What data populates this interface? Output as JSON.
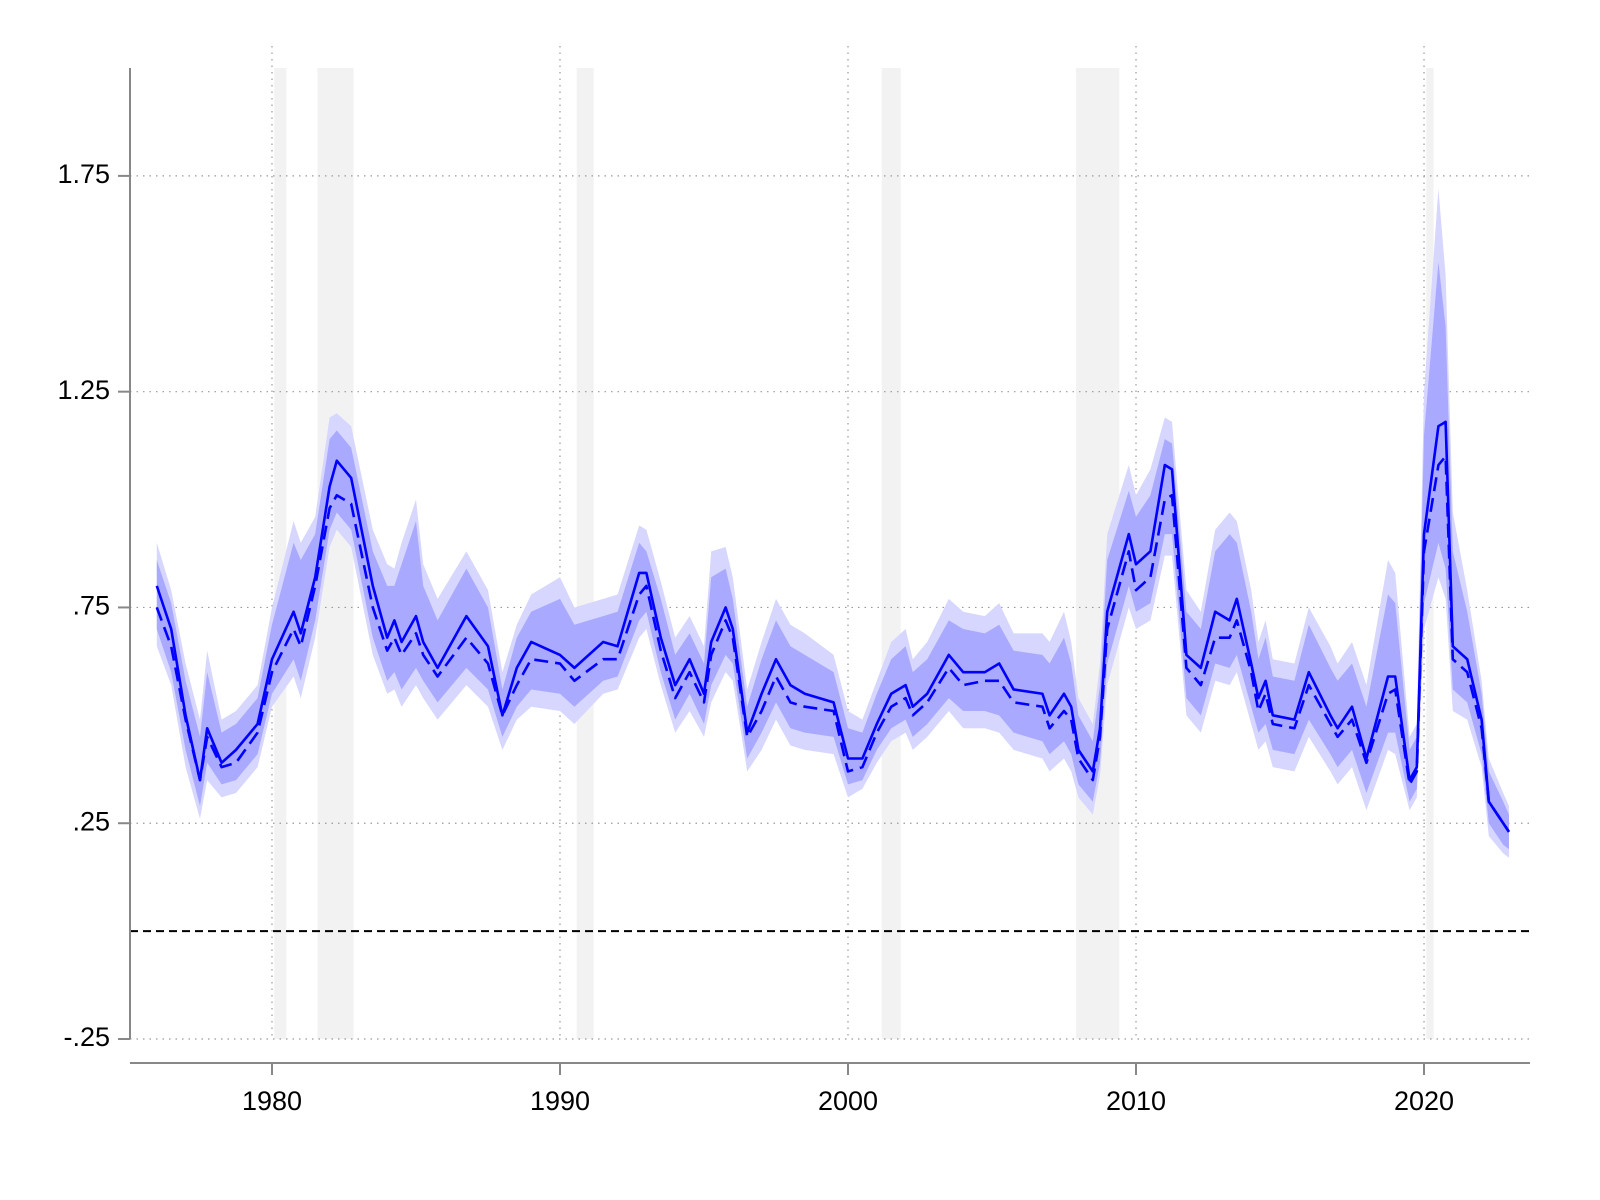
{
  "chart_data": {
    "type": "line",
    "xlim": [
      1975.07,
      2023.68
    ],
    "ylim": [
      -0.25,
      2.0
    ],
    "xticks": [
      1980,
      1990,
      2000,
      2010,
      2020
    ],
    "yticks": [
      {
        "value": -0.25,
        "label": "-.25"
      },
      {
        "value": 0.25,
        "label": ".25"
      },
      {
        "value": 0.75,
        "label": ".75"
      },
      1.25,
      1.75
    ],
    "grid": true,
    "shaded_regions": [
      [
        1980.08,
        1980.5
      ],
      [
        1981.58,
        1982.83
      ],
      [
        1990.58,
        1991.17
      ],
      [
        2001.17,
        2001.83
      ],
      [
        2007.92,
        2009.42
      ],
      [
        2020.08,
        2020.33
      ]
    ],
    "shaded_color": "#f2f2f2",
    "hline": {
      "value": 0,
      "color": "#000000",
      "dashed": true
    },
    "x": [
      1976.0,
      1976.5,
      1977.0,
      1977.5,
      1977.75,
      1978.25,
      1978.75,
      1979.5,
      1980.0,
      1980.75,
      1981.0,
      1981.5,
      1982.0,
      1982.25,
      1982.75,
      1983.5,
      1984.0,
      1984.25,
      1984.5,
      1985.0,
      1985.25,
      1985.75,
      1986.75,
      1987.5,
      1988.0,
      1988.5,
      1989.0,
      1990.0,
      1990.5,
      1991.5,
      1992.0,
      1992.75,
      1993.0,
      1993.5,
      1994.0,
      1994.5,
      1995.0,
      1995.25,
      1995.75,
      1996.0,
      1996.5,
      1997.0,
      1997.5,
      1998.0,
      1998.5,
      1999.5,
      2000.0,
      2000.5,
      2001.0,
      2001.5,
      2002.0,
      2002.25,
      2002.75,
      2003.5,
      2004.0,
      2004.75,
      2005.25,
      2005.75,
      2006.75,
      2007.0,
      2007.5,
      2007.75,
      2008.0,
      2008.5,
      2008.75,
      2009.0,
      2009.75,
      2010.0,
      2010.5,
      2011.0,
      2011.25,
      2011.75,
      2012.25,
      2012.75,
      2013.25,
      2013.5,
      2014.0,
      2014.25,
      2014.5,
      2014.75,
      2015.5,
      2016.0,
      2016.75,
      2017.0,
      2017.5,
      2018.0,
      2018.75,
      2019.0,
      2019.5,
      2019.75,
      2020.0,
      2020.5,
      2020.75,
      2021.0,
      2021.5,
      2022.0,
      2022.25,
      2022.75,
      2022.95
    ],
    "bands": [
      {
        "color": "#d6d6ff",
        "lower": [
          0.66,
          0.57,
          0.38,
          0.26,
          0.35,
          0.31,
          0.32,
          0.38,
          0.52,
          0.59,
          0.54,
          0.68,
          0.89,
          0.93,
          0.89,
          0.64,
          0.55,
          0.56,
          0.52,
          0.57,
          0.54,
          0.49,
          0.57,
          0.52,
          0.42,
          0.49,
          0.52,
          0.51,
          0.48,
          0.55,
          0.56,
          0.68,
          0.7,
          0.57,
          0.46,
          0.51,
          0.45,
          0.53,
          0.6,
          0.58,
          0.37,
          0.42,
          0.49,
          0.43,
          0.42,
          0.41,
          0.31,
          0.33,
          0.39,
          0.44,
          0.46,
          0.42,
          0.45,
          0.51,
          0.47,
          0.47,
          0.46,
          0.42,
          0.4,
          0.37,
          0.4,
          0.37,
          0.31,
          0.27,
          0.36,
          0.57,
          0.75,
          0.7,
          0.72,
          0.87,
          0.87,
          0.5,
          0.46,
          0.58,
          0.57,
          0.6,
          0.48,
          0.42,
          0.44,
          0.38,
          0.37,
          0.45,
          0.37,
          0.34,
          0.38,
          0.28,
          0.42,
          0.41,
          0.28,
          0.31,
          0.7,
          0.82,
          0.77,
          0.51,
          0.49,
          0.38,
          0.22,
          0.18,
          0.17
        ],
        "upper": [
          0.9,
          0.79,
          0.62,
          0.49,
          0.65,
          0.49,
          0.51,
          0.57,
          0.75,
          0.95,
          0.9,
          0.96,
          1.19,
          1.2,
          1.17,
          0.93,
          0.85,
          0.84,
          0.9,
          1.0,
          0.85,
          0.77,
          0.88,
          0.79,
          0.6,
          0.71,
          0.78,
          0.82,
          0.75,
          0.77,
          0.78,
          0.94,
          0.93,
          0.81,
          0.68,
          0.73,
          0.66,
          0.88,
          0.89,
          0.82,
          0.56,
          0.67,
          0.77,
          0.71,
          0.69,
          0.64,
          0.51,
          0.49,
          0.58,
          0.67,
          0.7,
          0.63,
          0.67,
          0.77,
          0.74,
          0.73,
          0.76,
          0.69,
          0.69,
          0.67,
          0.74,
          0.67,
          0.54,
          0.48,
          0.62,
          0.92,
          1.08,
          1.01,
          1.07,
          1.19,
          1.18,
          0.79,
          0.74,
          0.93,
          0.97,
          0.95,
          0.79,
          0.67,
          0.72,
          0.63,
          0.62,
          0.75,
          0.66,
          0.62,
          0.67,
          0.57,
          0.86,
          0.83,
          0.45,
          0.48,
          1.25,
          1.72,
          1.52,
          0.97,
          0.79,
          0.58,
          0.4,
          0.32,
          0.29
        ]
      },
      {
        "color": "#a9a9ff",
        "lower": [
          0.7,
          0.6,
          0.42,
          0.29,
          0.39,
          0.34,
          0.35,
          0.41,
          0.55,
          0.63,
          0.58,
          0.72,
          0.93,
          0.97,
          0.93,
          0.68,
          0.58,
          0.6,
          0.56,
          0.61,
          0.58,
          0.53,
          0.61,
          0.56,
          0.45,
          0.52,
          0.56,
          0.55,
          0.52,
          0.58,
          0.59,
          0.72,
          0.74,
          0.6,
          0.49,
          0.55,
          0.48,
          0.57,
          0.64,
          0.62,
          0.4,
          0.46,
          0.53,
          0.47,
          0.46,
          0.45,
          0.34,
          0.35,
          0.42,
          0.47,
          0.49,
          0.45,
          0.48,
          0.54,
          0.51,
          0.51,
          0.5,
          0.46,
          0.44,
          0.41,
          0.44,
          0.41,
          0.34,
          0.3,
          0.39,
          0.62,
          0.8,
          0.74,
          0.76,
          0.92,
          0.92,
          0.54,
          0.5,
          0.62,
          0.61,
          0.64,
          0.52,
          0.46,
          0.48,
          0.42,
          0.41,
          0.49,
          0.41,
          0.38,
          0.42,
          0.32,
          0.46,
          0.46,
          0.3,
          0.33,
          0.76,
          0.9,
          0.84,
          0.56,
          0.53,
          0.41,
          0.25,
          0.2,
          0.19
        ],
        "upper": [
          0.86,
          0.76,
          0.58,
          0.45,
          0.6,
          0.46,
          0.48,
          0.54,
          0.71,
          0.9,
          0.86,
          0.92,
          1.14,
          1.16,
          1.12,
          0.88,
          0.8,
          0.8,
          0.85,
          0.95,
          0.8,
          0.72,
          0.84,
          0.75,
          0.56,
          0.68,
          0.74,
          0.77,
          0.71,
          0.73,
          0.74,
          0.9,
          0.88,
          0.77,
          0.64,
          0.69,
          0.62,
          0.82,
          0.84,
          0.77,
          0.52,
          0.63,
          0.72,
          0.66,
          0.64,
          0.6,
          0.47,
          0.46,
          0.55,
          0.63,
          0.66,
          0.6,
          0.63,
          0.72,
          0.7,
          0.69,
          0.71,
          0.65,
          0.64,
          0.62,
          0.68,
          0.62,
          0.5,
          0.44,
          0.57,
          0.86,
          1.02,
          0.96,
          1.01,
          1.14,
          1.13,
          0.74,
          0.7,
          0.88,
          0.92,
          0.9,
          0.74,
          0.63,
          0.68,
          0.59,
          0.58,
          0.71,
          0.61,
          0.58,
          0.62,
          0.52,
          0.78,
          0.76,
          0.42,
          0.45,
          1.15,
          1.55,
          1.4,
          0.88,
          0.74,
          0.55,
          0.37,
          0.3,
          0.27
        ]
      }
    ],
    "series": [
      {
        "color": "#0000ff",
        "dashed": false,
        "values": [
          0.8,
          0.7,
          0.5,
          0.35,
          0.47,
          0.39,
          0.42,
          0.48,
          0.63,
          0.74,
          0.69,
          0.82,
          1.03,
          1.09,
          1.05,
          0.8,
          0.68,
          0.72,
          0.67,
          0.73,
          0.67,
          0.61,
          0.73,
          0.66,
          0.5,
          0.61,
          0.67,
          0.64,
          0.61,
          0.67,
          0.66,
          0.83,
          0.83,
          0.68,
          0.57,
          0.63,
          0.55,
          0.67,
          0.75,
          0.7,
          0.46,
          0.55,
          0.63,
          0.57,
          0.55,
          0.53,
          0.4,
          0.4,
          0.48,
          0.55,
          0.57,
          0.52,
          0.55,
          0.64,
          0.6,
          0.6,
          0.62,
          0.56,
          0.55,
          0.5,
          0.55,
          0.52,
          0.42,
          0.37,
          0.47,
          0.74,
          0.92,
          0.85,
          0.88,
          1.08,
          1.07,
          0.64,
          0.61,
          0.74,
          0.72,
          0.77,
          0.62,
          0.54,
          0.58,
          0.5,
          0.49,
          0.6,
          0.5,
          0.47,
          0.52,
          0.4,
          0.59,
          0.59,
          0.35,
          0.38,
          0.92,
          1.17,
          1.18,
          0.66,
          0.63,
          0.49,
          0.3,
          0.25,
          0.23
        ]
      },
      {
        "color": "#0000ff",
        "dashed": true,
        "values": [
          0.75,
          0.66,
          0.49,
          0.35,
          0.45,
          0.38,
          0.39,
          0.46,
          0.6,
          0.7,
          0.66,
          0.8,
          0.98,
          1.01,
          0.99,
          0.75,
          0.65,
          0.68,
          0.64,
          0.69,
          0.64,
          0.59,
          0.68,
          0.62,
          0.5,
          0.57,
          0.63,
          0.62,
          0.58,
          0.63,
          0.63,
          0.78,
          0.8,
          0.65,
          0.54,
          0.6,
          0.53,
          0.64,
          0.72,
          0.68,
          0.45,
          0.51,
          0.59,
          0.53,
          0.52,
          0.51,
          0.37,
          0.38,
          0.46,
          0.52,
          0.54,
          0.5,
          0.53,
          0.61,
          0.57,
          0.58,
          0.58,
          0.53,
          0.52,
          0.47,
          0.51,
          0.49,
          0.4,
          0.35,
          0.45,
          0.7,
          0.88,
          0.79,
          0.82,
          1.0,
          1.01,
          0.61,
          0.57,
          0.68,
          0.68,
          0.72,
          0.6,
          0.51,
          0.55,
          0.48,
          0.47,
          0.57,
          0.48,
          0.45,
          0.49,
          0.39,
          0.55,
          0.56,
          0.34,
          0.37,
          0.88,
          1.08,
          1.1,
          0.63,
          0.6,
          0.47,
          0.3,
          0.25,
          0.23
        ]
      }
    ]
  }
}
